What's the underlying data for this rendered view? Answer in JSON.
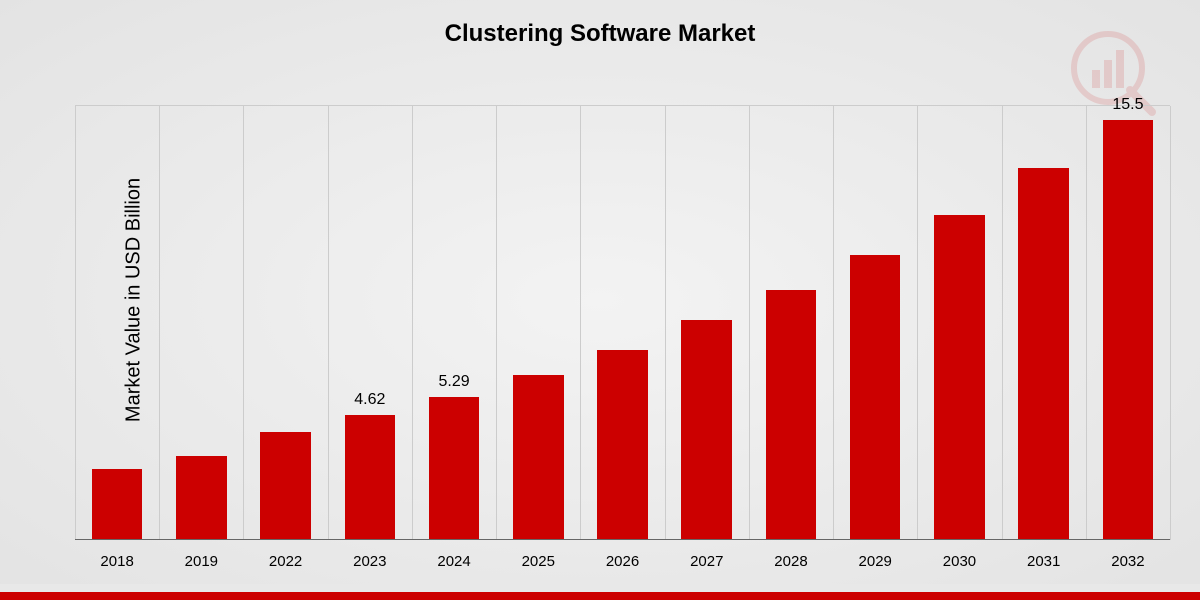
{
  "chart": {
    "type": "bar",
    "title": "Clustering Software Market",
    "title_fontsize": 24,
    "title_color": "#000000",
    "y_axis_label": "Market Value in USD Billion",
    "y_axis_fontsize": 20,
    "y_axis_color": "#000000",
    "background_gradient_from": "#f3f3f3",
    "background_gradient_to": "#e3e3e3",
    "categories": [
      "2018",
      "2019",
      "2022",
      "2023",
      "2024",
      "2025",
      "2026",
      "2027",
      "2028",
      "2029",
      "2030",
      "2031",
      "2032"
    ],
    "values": [
      2.6,
      3.1,
      4.0,
      4.62,
      5.29,
      6.1,
      7.0,
      8.1,
      9.2,
      10.5,
      12.0,
      13.7,
      15.5
    ],
    "value_labels": {
      "3": "4.62",
      "4": "5.29",
      "12": "15.5"
    },
    "ylim": [
      0,
      16
    ],
    "bar_color": "#cc0000",
    "bar_width_pct": 60,
    "gridline_color": "#cccccc",
    "x_tick_fontsize": 15,
    "x_tick_color": "#000000",
    "value_label_fontsize": 16,
    "value_label_color": "#000000",
    "bottom_stripe_color": "#cc0000",
    "bottom_stripe_light_color": "#e8e8e8",
    "watermark_color": "#cc0000"
  }
}
